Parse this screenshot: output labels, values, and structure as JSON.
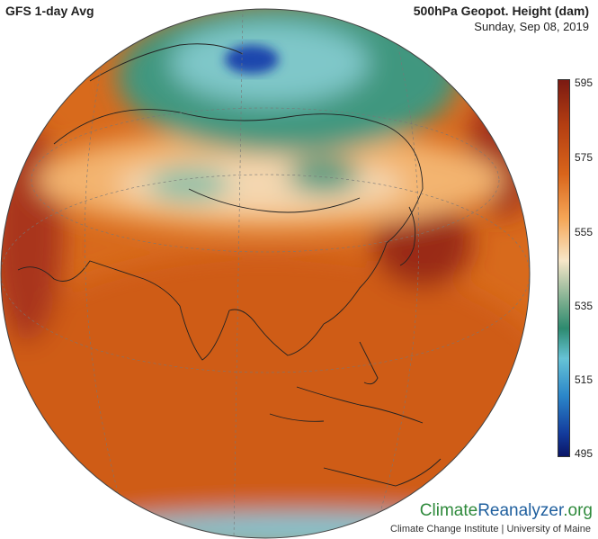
{
  "header": {
    "left_title": "GFS 1-day Avg",
    "right_title": "500hPa Geopot. Height (dam)",
    "date": "Sunday, Sep 08, 2019"
  },
  "colorbar": {
    "ticks": [
      "595",
      "575",
      "555",
      "535",
      "515",
      "495"
    ],
    "colors": [
      "#7b1a12",
      "#d9651b",
      "#f7e6c8",
      "#2d8a6f",
      "#66c3d6",
      "#133b9c"
    ]
  },
  "branding": {
    "part1": "Climate",
    "part2": "Reanalyzer",
    "part3": ".org",
    "credit": "Climate Change Institute | University of Maine"
  }
}
